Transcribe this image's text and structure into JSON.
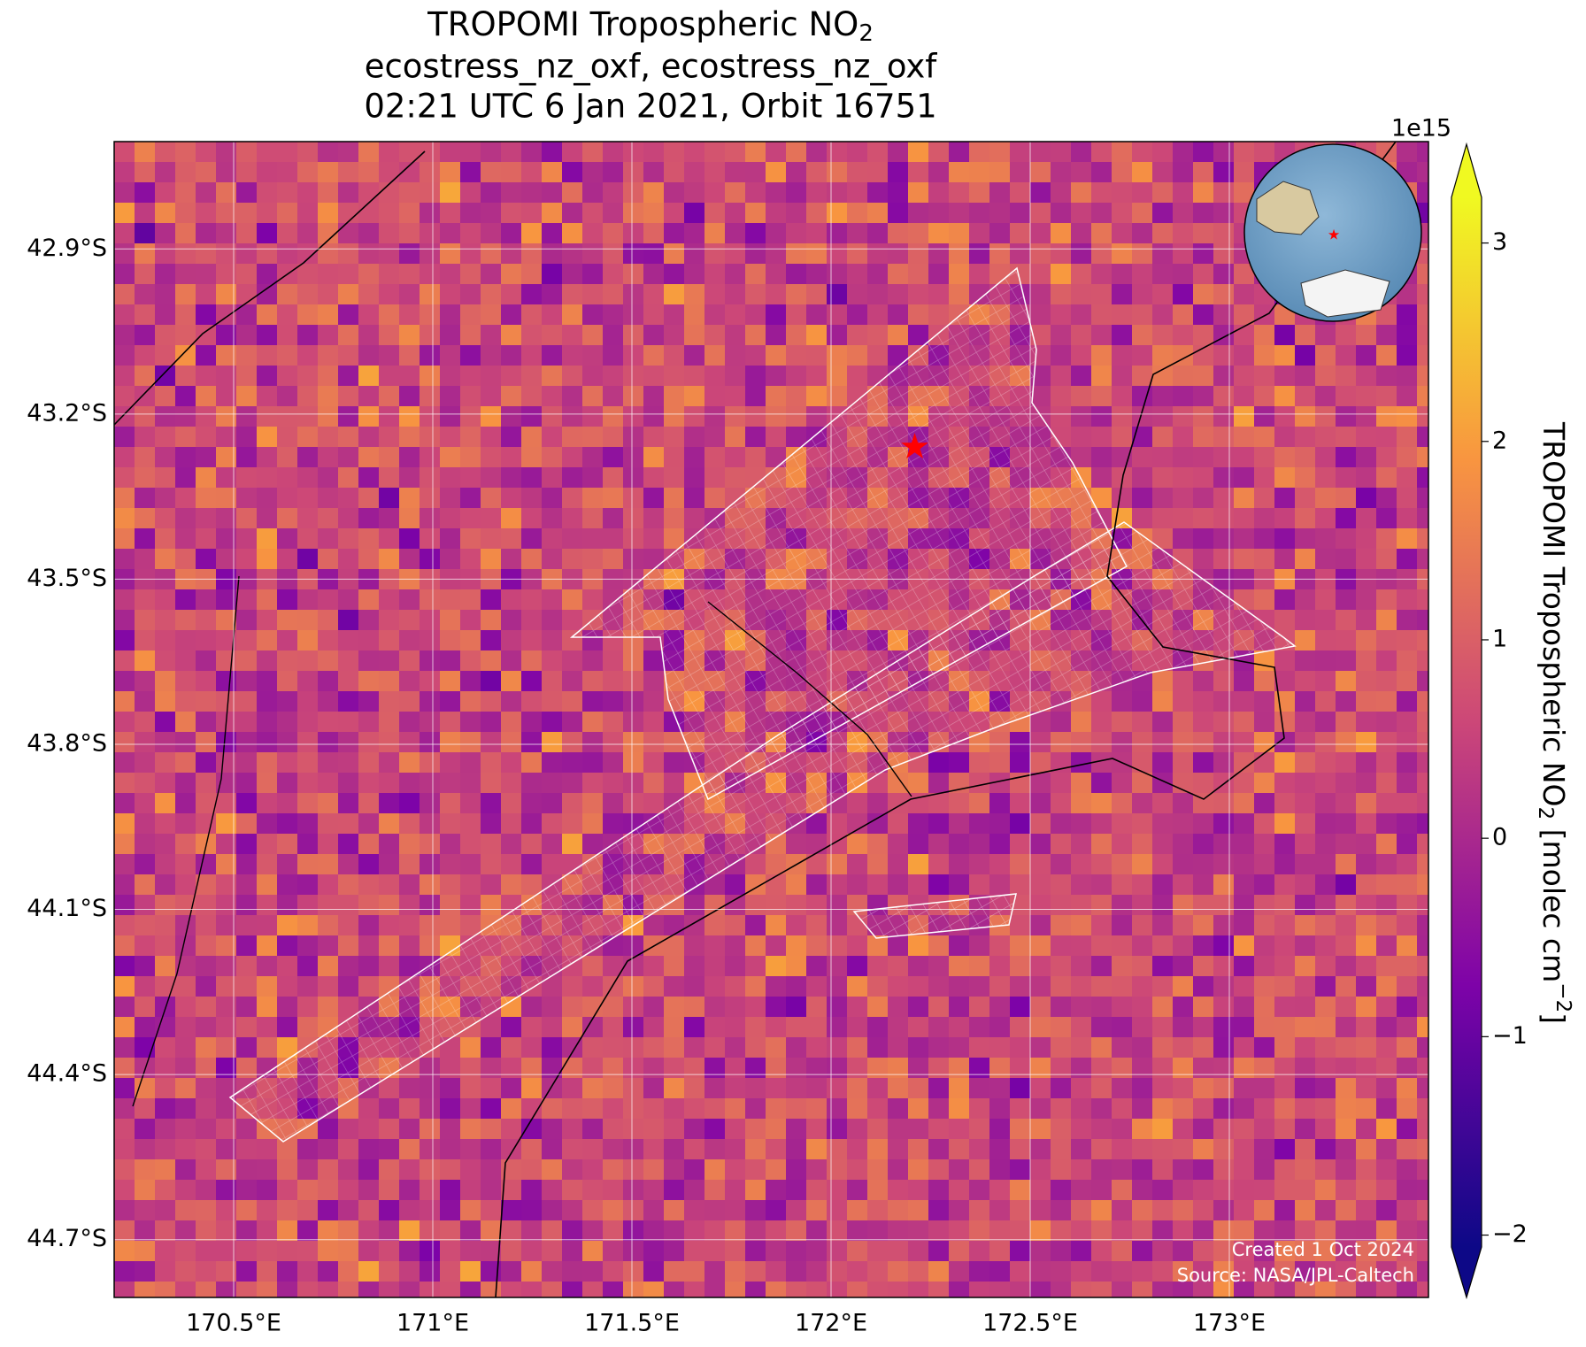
{
  "title": {
    "line1": "TROPOMI Tropospheric NO",
    "line1_sub": "2",
    "line2": "ecostress_nz_oxf, ecostress_nz_oxf",
    "line3": "02:21 UTC 6 Jan 2021, Orbit 16751"
  },
  "map": {
    "xlim": [
      170.2,
      173.5
    ],
    "ylim": [
      -44.805,
      -42.705
    ],
    "xticks": [
      {
        "value": 170.5,
        "label": "170.5°E"
      },
      {
        "value": 171,
        "label": "171°E"
      },
      {
        "value": 171.5,
        "label": "171.5°E"
      },
      {
        "value": 172,
        "label": "172°E"
      },
      {
        "value": 172.5,
        "label": "172.5°E"
      },
      {
        "value": 173,
        "label": "173°E"
      }
    ],
    "yticks": [
      {
        "value": -42.9,
        "label": "42.9°S"
      },
      {
        "value": -43.2,
        "label": "43.2°S"
      },
      {
        "value": -43.5,
        "label": "43.5°S"
      },
      {
        "value": -43.8,
        "label": "43.8°S"
      },
      {
        "value": -44.1,
        "label": "44.1°S"
      },
      {
        "value": -44.4,
        "label": "44.4°S"
      },
      {
        "value": -44.7,
        "label": "44.7°S"
      }
    ],
    "site": {
      "lon": 172.21,
      "lat": -43.26
    }
  },
  "colorbar": {
    "exponent": "1e15",
    "clim": [
      -2.06,
      3.23
    ],
    "ticks": [
      {
        "value": -2,
        "label": "−2"
      },
      {
        "value": -1,
        "label": "−1"
      },
      0,
      1,
      2,
      3
    ],
    "label": {
      "text": "TROPOMI Tropospheric NO",
      "sub": "2",
      "unit": " [molec cm",
      "sup": "−2",
      "end": "]"
    }
  },
  "credits": [
    "Created 1 Oct 2024",
    "Source: NASA/JPL-Caltech"
  ]
}
